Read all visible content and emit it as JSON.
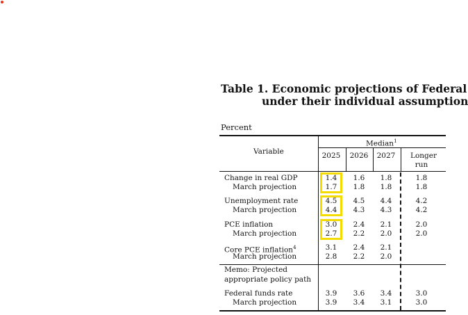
{
  "title": {
    "line1": "Table 1. Economic projections of Federal",
    "line2": "under their individual assumption"
  },
  "unit": "Percent",
  "header": {
    "variable": "Variable",
    "median": "Median",
    "median_sup": "1",
    "years": [
      "2025",
      "2026",
      "2027"
    ],
    "longer_run_line1": "Longer",
    "longer_run_line2": "run"
  },
  "rows": [
    {
      "label": "Change in real GDP",
      "values": [
        "1.4",
        "1.6",
        "1.8",
        "1.8"
      ]
    },
    {
      "label": "March projection",
      "values": [
        "1.7",
        "1.8",
        "1.8",
        "1.8"
      ]
    },
    {
      "label": "Unemployment rate",
      "values": [
        "4.5",
        "4.5",
        "4.4",
        "4.2"
      ]
    },
    {
      "label": "March projection",
      "values": [
        "4.4",
        "4.3",
        "4.3",
        "4.2"
      ]
    },
    {
      "label": "PCE inflation",
      "values": [
        "3.0",
        "2.4",
        "2.1",
        "2.0"
      ]
    },
    {
      "label": "March projection",
      "values": [
        "2.7",
        "2.2",
        "2.0",
        "2.0"
      ]
    },
    {
      "label": "Core PCE inflation",
      "label_sup": "4",
      "values": [
        "3.1",
        "2.4",
        "2.1",
        ""
      ]
    },
    {
      "label": "March projection",
      "values": [
        "2.8",
        "2.2",
        "2.0",
        ""
      ]
    },
    {
      "label": "Federal funds rate",
      "values": [
        "3.9",
        "3.6",
        "3.4",
        "3.0"
      ]
    },
    {
      "label": "March projection",
      "values": [
        "3.9",
        "3.4",
        "3.1",
        "3.0"
      ]
    }
  ],
  "memo": {
    "line1": "Memo: Projected",
    "line2": "appropriate policy path"
  },
  "colors": {
    "highlight": "#f5dc00",
    "dot": "#e8321e"
  }
}
